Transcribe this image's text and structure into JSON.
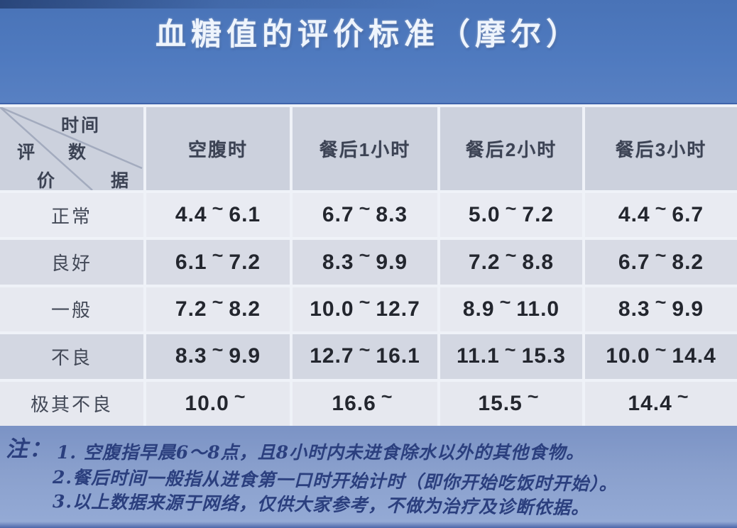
{
  "chart_data": {
    "type": "table",
    "title": "血糖值的评价标准（摩尔）",
    "corner": {
      "time": "时间",
      "data": "数据",
      "eval": "评价"
    },
    "columns": [
      "空腹时",
      "餐后1小时",
      "餐后2小时",
      "餐后3小时"
    ],
    "rows": [
      {
        "label": "正常",
        "values": [
          "4.4~6.1",
          "6.7~8.3",
          "5.0~7.2",
          "4.4~6.7"
        ]
      },
      {
        "label": "良好",
        "values": [
          "6.1~7.2",
          "8.3~9.9",
          "7.2~8.8",
          "6.7~8.2"
        ]
      },
      {
        "label": "一般",
        "values": [
          "7.2~8.2",
          "10.0~12.7",
          "8.9~11.0",
          "8.3~9.9"
        ]
      },
      {
        "label": "不良",
        "values": [
          "8.3~9.9",
          "12.7~16.1",
          "11.1~15.3",
          "10.0~14.4"
        ]
      },
      {
        "label": "极其不良",
        "values": [
          "10.0~",
          "16.6~",
          "15.5~",
          "14.4~"
        ]
      }
    ]
  },
  "notes": {
    "marker": "注：",
    "items": [
      "1. 空腹指早晨6～8点，且8小时内未进食除水以外的其他食物。",
      "2.餐后时间一般指从进食第一口时开始计时（即你开始吃饭时开始）。",
      "3.以上数据来源于网络，仅供大家参考，不做为治疗及诊断依据。"
    ]
  },
  "colors": {
    "background_blue": "#4d78be",
    "notes_background_blue": "#8aa0cd",
    "header_row": "#ccd1dd",
    "light_row": "#e9ebf2",
    "dark_row": "#d6d9e3",
    "number_text": "#23262e",
    "note_text": "#2b3f7e",
    "title_text": "#eef4fc"
  }
}
